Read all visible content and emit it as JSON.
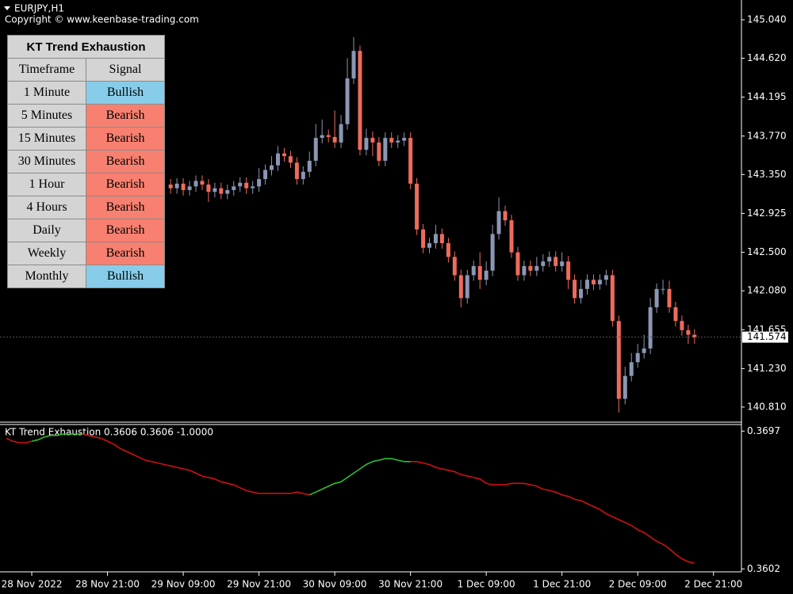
{
  "chart_data": [
    {
      "type": "candlestick",
      "title": "EURJPY,H1",
      "subtitle": "Copyright © www.keenbase-trading.com",
      "bull_color": "#8a96b4",
      "bear_color": "#ee6b5c",
      "ylim": [
        140.654,
        145.23
      ],
      "yticks": [
        {
          "value": 145.04,
          "label": "145.040"
        },
        {
          "value": 144.62,
          "label": "144.620"
        },
        144.195,
        {
          "value": 143.77,
          "label": "143.770"
        },
        {
          "value": 143.35,
          "label": "143.350"
        },
        142.925,
        {
          "value": 142.5,
          "label": "142.500"
        },
        {
          "value": 142.08,
          "label": "142.080"
        },
        141.655,
        {
          "value": 141.23,
          "label": "141.230"
        },
        {
          "value": 140.81,
          "label": "140.810"
        }
      ],
      "last_price": 141.574,
      "open": [
        null,
        null,
        null,
        null,
        null,
        null,
        null,
        null,
        null,
        null,
        null,
        null,
        null,
        null,
        null,
        null,
        null,
        null,
        null,
        null,
        null,
        null,
        null,
        null,
        null,
        null,
        143.24,
        143.2,
        143.25,
        143.18,
        143.22,
        143.28,
        143.24,
        143.16,
        143.2,
        143.14,
        143.18,
        143.22,
        143.26,
        143.2,
        143.22,
        143.3,
        143.4,
        143.45,
        143.58,
        143.55,
        143.48,
        143.3,
        143.38,
        143.5,
        143.75,
        143.78,
        143.76,
        143.7,
        143.9,
        144.4,
        144.7,
        143.62,
        143.75,
        143.7,
        143.5,
        143.75,
        143.7,
        143.72,
        143.75,
        143.25,
        142.75,
        142.55,
        142.6,
        142.7,
        142.6,
        142.45,
        142.25,
        142.0,
        142.25,
        142.35,
        142.2,
        142.3,
        142.7,
        142.95,
        142.85,
        142.5,
        142.25,
        142.35,
        142.3,
        142.35,
        142.4,
        142.45,
        142.35,
        142.4,
        142.2,
        142.0,
        142.1,
        142.2,
        142.15,
        142.2,
        142.25,
        141.75,
        140.9,
        141.15,
        141.3,
        141.4,
        141.45,
        141.9,
        142.1,
        142.1,
        141.9,
        141.75,
        141.65,
        141.6,
        null,
        null,
        null
      ],
      "high": [
        null,
        null,
        null,
        null,
        null,
        null,
        null,
        null,
        null,
        null,
        null,
        null,
        null,
        null,
        null,
        null,
        null,
        null,
        null,
        null,
        null,
        null,
        null,
        null,
        null,
        null,
        143.3,
        143.31,
        143.31,
        143.28,
        143.34,
        143.34,
        143.3,
        143.26,
        143.26,
        143.24,
        143.28,
        143.32,
        143.32,
        143.28,
        143.42,
        143.46,
        143.55,
        143.66,
        143.64,
        143.61,
        143.54,
        143.44,
        143.6,
        143.9,
        143.95,
        143.84,
        144.05,
        144.0,
        144.62,
        144.85,
        144.76,
        143.85,
        143.82,
        143.76,
        143.81,
        143.81,
        143.78,
        143.81,
        143.81,
        143.31,
        142.81,
        142.66,
        142.8,
        142.76,
        142.66,
        142.51,
        142.31,
        142.31,
        142.41,
        142.5,
        142.4,
        142.8,
        143.1,
        143.01,
        142.91,
        142.56,
        142.41,
        142.41,
        142.45,
        142.48,
        142.51,
        142.51,
        142.5,
        142.46,
        142.26,
        142.2,
        142.26,
        142.26,
        142.26,
        142.31,
        142.31,
        141.81,
        141.25,
        141.4,
        141.5,
        141.6,
        142.0,
        142.16,
        142.2,
        142.19,
        141.96,
        141.81,
        141.71,
        141.66,
        null,
        null,
        null
      ],
      "low": [
        null,
        null,
        null,
        null,
        null,
        null,
        null,
        null,
        null,
        null,
        null,
        null,
        null,
        null,
        null,
        null,
        null,
        null,
        null,
        null,
        null,
        null,
        null,
        null,
        null,
        null,
        143.14,
        143.14,
        143.12,
        143.12,
        143.16,
        143.18,
        143.05,
        143.1,
        143.08,
        143.08,
        143.12,
        143.16,
        143.14,
        143.14,
        143.16,
        143.24,
        143.34,
        143.39,
        143.49,
        143.42,
        143.24,
        143.24,
        143.32,
        143.44,
        143.69,
        143.7,
        143.64,
        143.64,
        143.84,
        144.34,
        143.56,
        143.56,
        143.55,
        143.44,
        143.44,
        143.64,
        143.64,
        143.66,
        143.19,
        142.69,
        142.49,
        142.49,
        142.54,
        142.54,
        142.39,
        142.19,
        141.9,
        141.94,
        142.19,
        142.1,
        142.14,
        142.24,
        142.64,
        142.79,
        142.44,
        142.19,
        142.19,
        142.24,
        142.24,
        142.29,
        142.34,
        142.29,
        142.29,
        142.1,
        141.94,
        141.94,
        142.04,
        142.09,
        142.09,
        142.14,
        141.69,
        140.75,
        140.84,
        141.09,
        141.24,
        141.34,
        141.39,
        141.84,
        142.04,
        141.84,
        141.69,
        141.59,
        141.5,
        141.5,
        null,
        null,
        null
      ],
      "close": [
        null,
        null,
        null,
        null,
        null,
        null,
        null,
        null,
        null,
        null,
        null,
        null,
        null,
        null,
        null,
        null,
        null,
        null,
        null,
        null,
        null,
        null,
        null,
        null,
        null,
        null,
        143.2,
        143.25,
        143.18,
        143.22,
        143.28,
        143.24,
        143.16,
        143.2,
        143.14,
        143.18,
        143.22,
        143.26,
        143.2,
        143.22,
        143.3,
        143.4,
        143.45,
        143.58,
        143.55,
        143.48,
        143.3,
        143.38,
        143.5,
        143.75,
        143.78,
        143.76,
        143.7,
        143.9,
        144.4,
        144.7,
        143.62,
        143.75,
        143.7,
        143.5,
        143.75,
        143.7,
        143.72,
        143.75,
        143.25,
        142.75,
        142.55,
        142.6,
        142.7,
        142.6,
        142.45,
        142.25,
        142.0,
        142.25,
        142.35,
        142.2,
        142.3,
        142.7,
        142.95,
        142.85,
        142.5,
        142.25,
        142.35,
        142.3,
        142.35,
        142.4,
        142.45,
        142.35,
        142.4,
        142.2,
        142.0,
        142.1,
        142.2,
        142.15,
        142.2,
        142.25,
        141.75,
        140.9,
        141.15,
        141.3,
        141.4,
        141.45,
        141.9,
        142.1,
        142.1,
        141.9,
        141.75,
        141.65,
        141.6,
        141.57,
        null,
        null,
        null
      ]
    },
    {
      "type": "line",
      "title": "KT Trend Exhaustion 0.3606 0.3606 -1.0000",
      "categories": [
        null,
        null,
        null,
        null,
        "28 Nov 2022",
        null,
        null,
        null,
        null,
        null,
        null,
        null,
        null,
        null,
        null,
        null,
        "28 Nov 21:00",
        null,
        null,
        null,
        null,
        null,
        null,
        null,
        null,
        null,
        null,
        null,
        "29 Nov 09:00",
        null,
        null,
        null,
        null,
        null,
        null,
        null,
        null,
        null,
        null,
        null,
        "29 Nov 21:00",
        null,
        null,
        null,
        null,
        null,
        null,
        null,
        null,
        null,
        null,
        null,
        "30 Nov 09:00",
        null,
        null,
        null,
        null,
        null,
        null,
        null,
        null,
        null,
        null,
        null,
        "30 Nov 21:00",
        null,
        null,
        null,
        null,
        null,
        null,
        null,
        null,
        null,
        null,
        null,
        "1 Dec 09:00",
        null,
        null,
        null,
        null,
        null,
        null,
        null,
        null,
        null,
        null,
        null,
        "1 Dec 21:00",
        null,
        null,
        null,
        null,
        null,
        null,
        null,
        null,
        null,
        null,
        null,
        "2 Dec 09:00",
        null,
        null,
        null,
        null,
        null,
        null,
        null,
        null,
        null,
        null,
        null,
        "2 Dec 21:00"
      ],
      "ylim": [
        0.36,
        0.3701
      ],
      "yticks": [
        0.3697,
        0.3602
      ],
      "series": [
        {
          "color": "#d01010",
          "values": [
            0.3692,
            0.369,
            0.3689,
            0.3689,
            0.369,
            null,
            null,
            null,
            null,
            null,
            null,
            null,
            0.3695,
            0.3694,
            0.3693,
            0.3692,
            0.369,
            0.3688,
            0.3685,
            0.3683,
            0.3681,
            0.3679,
            0.3677,
            0.3676,
            0.3675,
            0.3674,
            0.3673,
            0.3672,
            0.3671,
            0.367,
            0.3668,
            0.3666,
            0.3665,
            0.3664,
            0.3662,
            0.3661,
            0.366,
            0.3658,
            0.3656,
            0.3655,
            0.3654,
            0.3654,
            0.3654,
            0.3654,
            0.3654,
            0.3654,
            0.3655,
            0.3654,
            0.3653,
            null,
            null,
            null,
            null,
            null,
            null,
            null,
            null,
            null,
            null,
            null,
            null,
            null,
            null,
            null,
            0.3676,
            0.3676,
            0.3675,
            0.3674,
            0.3672,
            0.3671,
            0.367,
            0.3669,
            0.3667,
            0.3666,
            0.3665,
            0.3664,
            0.3661,
            0.366,
            0.366,
            0.366,
            0.3661,
            0.3661,
            0.3661,
            0.366,
            0.3659,
            0.3657,
            0.3656,
            0.3655,
            0.3653,
            0.3652,
            0.365,
            0.3649,
            0.3647,
            0.3645,
            0.3643,
            0.364,
            0.3638,
            0.3636,
            0.3634,
            0.3632,
            0.3629,
            0.3627,
            0.3624,
            0.3621,
            0.3619,
            0.3616,
            0.3612,
            0.3609,
            0.3607,
            0.3606,
            null,
            null,
            null
          ]
        },
        {
          "color": "#2fbf2f",
          "values": [
            null,
            null,
            null,
            null,
            0.369,
            0.3691,
            0.3693,
            0.3694,
            0.3694,
            0.3695,
            0.3695,
            0.3695,
            0.3695,
            null,
            null,
            null,
            null,
            null,
            null,
            null,
            null,
            null,
            null,
            null,
            null,
            null,
            null,
            null,
            null,
            null,
            null,
            null,
            null,
            null,
            null,
            null,
            null,
            null,
            null,
            null,
            null,
            null,
            null,
            null,
            null,
            null,
            null,
            null,
            0.3653,
            0.3655,
            0.3657,
            0.3659,
            0.3661,
            0.3662,
            0.3665,
            0.3668,
            0.3671,
            0.3674,
            0.3676,
            0.3677,
            0.3678,
            0.3678,
            0.3677,
            0.3676,
            0.3676,
            null,
            null,
            null,
            null,
            null,
            null,
            null,
            null,
            null,
            null,
            null,
            null,
            null,
            null,
            null,
            null,
            null,
            null,
            null,
            null,
            null,
            null,
            null,
            null,
            null,
            null,
            null,
            null,
            null,
            null,
            null,
            null,
            null,
            null,
            null,
            null,
            null,
            null,
            null,
            null,
            null,
            null,
            null,
            null,
            null,
            null,
            null,
            null
          ]
        }
      ]
    }
  ],
  "table": {
    "title": "KT Trend Exhaustion",
    "columns": [
      "Timeframe",
      "Signal"
    ],
    "rows": [
      [
        "1 Minute",
        "Bullish"
      ],
      [
        "5 Minutes",
        "Bearish"
      ],
      [
        "15 Minutes",
        "Bearish"
      ],
      [
        "30 Minutes",
        "Bearish"
      ],
      [
        "1 Hour",
        "Bearish"
      ],
      [
        "4 Hours",
        "Bearish"
      ],
      [
        "Daily",
        "Bearish"
      ],
      [
        "Weekly",
        "Bearish"
      ],
      [
        "Monthly",
        "Bullish"
      ]
    ],
    "signal_colors": {
      "Bullish": "#87cdea",
      "Bearish": "#f88070"
    }
  }
}
